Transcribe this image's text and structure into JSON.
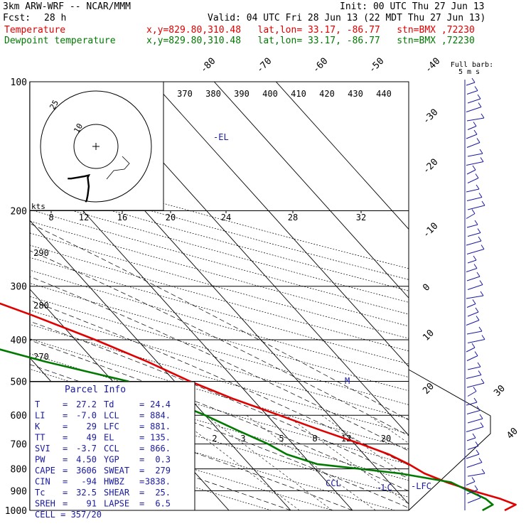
{
  "header": {
    "model": "3km ARW-WRF -- NCAR/MMM",
    "init": "Init: 00 UTC Thu 27 Jun 13",
    "fcst_label": "Fcst:",
    "fcst_value": "28 h",
    "valid": "Valid: 04 UTC Fri 28 Jun 13 (22 MDT Thu 27 Jun 13)",
    "temp_label": "Temperature",
    "dew_label": "Dewpoint temperature",
    "location": "x,y=829.80,310.48   lat,lon= 33.17, -86.77   stn=BMX ,72230"
  },
  "chart_data": {
    "type": "line",
    "title": "",
    "pressure_levels": [
      100,
      200,
      300,
      400,
      500,
      600,
      700,
      800,
      900,
      1000
    ],
    "isotherm_labels": [
      -80,
      -70,
      -60,
      -50,
      -40,
      -30,
      -20,
      -10,
      0,
      10,
      20,
      30,
      40
    ],
    "theta_labels": [
      370,
      380,
      390,
      400,
      410,
      420,
      430,
      440
    ],
    "theta_left_labels": [
      290,
      280,
      270
    ],
    "mixing_ratio_labels": [
      2,
      3,
      5,
      8,
      12,
      20
    ],
    "hodo_speed_labels": [
      "8",
      "12",
      "16",
      "20",
      "24",
      "28",
      "32"
    ],
    "hodo_speed_unit": "kts",
    "hodo_ring_labels": [
      "25",
      "10"
    ],
    "series": [
      {
        "name": "Temperature",
        "color": "#e00000",
        "points": [
          {
            "p": 1000,
            "t": 24.6
          },
          {
            "p": 970,
            "t": 27.2
          },
          {
            "p": 940,
            "t": 25.6
          },
          {
            "p": 900,
            "t": 22.2
          },
          {
            "p": 860,
            "t": 19.3
          },
          {
            "p": 820,
            "t": 17.0
          },
          {
            "p": 780,
            "t": 15.8
          },
          {
            "p": 740,
            "t": 14.0
          },
          {
            "p": 700,
            "t": 11.0
          },
          {
            "p": 650,
            "t": 6.5
          },
          {
            "p": 600,
            "t": 2.0
          },
          {
            "p": 550,
            "t": -3.0
          },
          {
            "p": 500,
            "t": -7.5
          },
          {
            "p": 450,
            "t": -11.5
          },
          {
            "p": 400,
            "t": -16.8
          },
          {
            "p": 350,
            "t": -23.5
          },
          {
            "p": 300,
            "t": -32.0
          },
          {
            "p": 250,
            "t": -42.5
          },
          {
            "p": 200,
            "t": -54.0
          },
          {
            "p": 170,
            "t": -61.0
          },
          {
            "p": 150,
            "t": -64.5
          },
          {
            "p": 130,
            "t": -64.5
          },
          {
            "p": 115,
            "t": -63.0
          },
          {
            "p": 100,
            "t": -62.5
          }
        ]
      },
      {
        "name": "Dewpoint temperature",
        "color": "#007a00",
        "points": [
          {
            "p": 1000,
            "t": 21.0
          },
          {
            "p": 970,
            "t": 23.5
          },
          {
            "p": 940,
            "t": 23.2
          },
          {
            "p": 900,
            "t": 21.6
          },
          {
            "p": 860,
            "t": 20.0
          },
          {
            "p": 820,
            "t": 13.0
          },
          {
            "p": 780,
            "t": 1.0
          },
          {
            "p": 740,
            "t": -2.5
          },
          {
            "p": 700,
            "t": -4.0
          },
          {
            "p": 650,
            "t": -7.0
          },
          {
            "p": 600,
            "t": -10.0
          },
          {
            "p": 550,
            "t": -14.0
          },
          {
            "p": 500,
            "t": -17.5
          },
          {
            "p": 450,
            "t": -28.0
          },
          {
            "p": 400,
            "t": -38.0
          },
          {
            "p": 370,
            "t": -37.0
          },
          {
            "p": 340,
            "t": -44.0
          },
          {
            "p": 300,
            "t": -60.0
          },
          {
            "p": 270,
            "t": -59.5
          },
          {
            "p": 240,
            "t": -63.0
          },
          {
            "p": 210,
            "t": -68.0
          },
          {
            "p": 190,
            "t": -75.0
          },
          {
            "p": 170,
            "t": -78.0
          },
          {
            "p": 150,
            "t": -82.5
          },
          {
            "p": 130,
            "t": -85.0
          },
          {
            "p": 115,
            "t": -86.0
          },
          {
            "p": 100,
            "t": -88.5
          }
        ]
      }
    ],
    "levels": [
      {
        "label": "-EL",
        "p": 135
      },
      {
        "label": "M",
        "p": 500
      },
      {
        "label": "CCL",
        "p": 866
      },
      {
        "label": "-LC",
        "p": 884
      },
      {
        "label": "-LFC",
        "p": 881
      }
    ],
    "wind_legend": {
      "title": "Full barb:",
      "value": "5 m s"
    },
    "hodograph": [
      [
        -14.5,
        -18.5
      ],
      [
        -14.5,
        -17
      ],
      [
        -14.0,
        -14
      ],
      [
        -13.5,
        -11
      ],
      [
        -13.0,
        -9
      ],
      [
        -14.0,
        -9.5
      ],
      [
        -18.0,
        -9.0
      ],
      [
        -22.0,
        -9.5
      ],
      [
        -24.5,
        -10.0
      ],
      [
        -25.0,
        -10.5
      ]
    ],
    "parcel_info": {
      "title": "Parcel Info",
      "rows": [
        [
          "T",
          "27.2",
          "Td",
          "24.4"
        ],
        [
          "LI",
          "-7.0",
          "LCL",
          "884."
        ],
        [
          "K",
          "29",
          "LFC",
          "881."
        ],
        [
          "TT",
          "49",
          "EL",
          "135."
        ],
        [
          "SVI",
          "-3.7",
          "CCL",
          "866."
        ],
        [
          "PW",
          "4.50",
          "YGP",
          "0.3"
        ],
        [
          "CAPE",
          "3606",
          "SWEAT",
          "279"
        ],
        [
          "CIN",
          "-94",
          "HWBZ",
          "3838."
        ],
        [
          "Tc",
          "32.5",
          "SHEAR",
          "25."
        ],
        [
          "SREH",
          "91",
          "LAPSE",
          "6.5"
        ]
      ],
      "cell": "CELL = 357/20"
    }
  }
}
